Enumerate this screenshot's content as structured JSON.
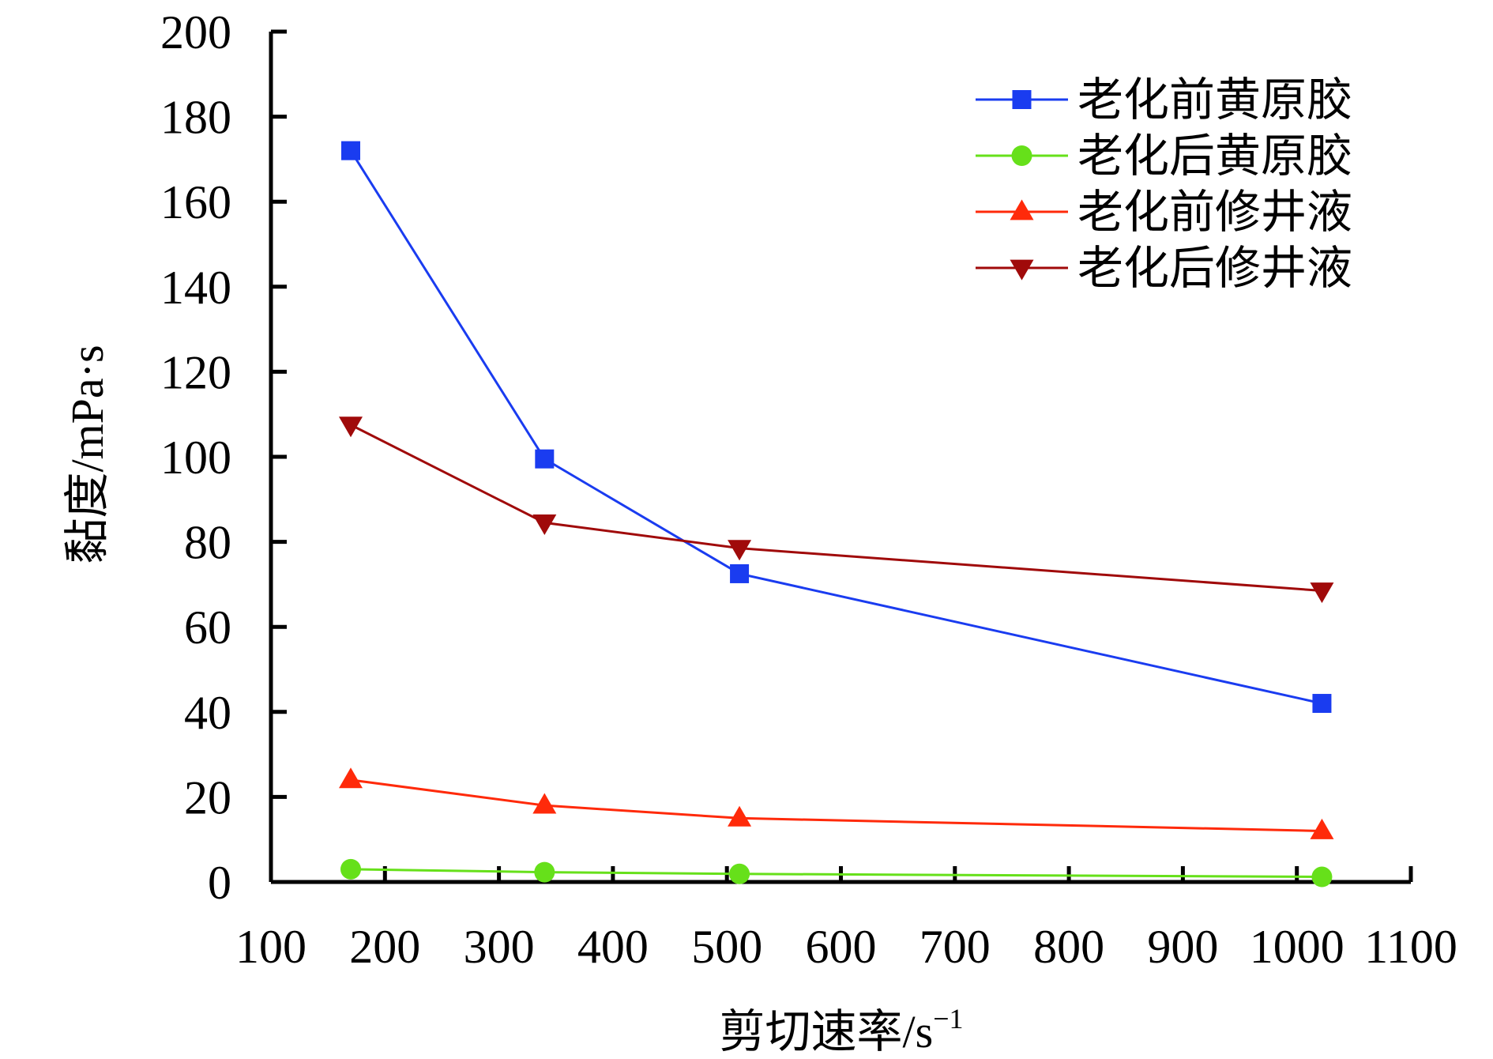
{
  "chart_data": {
    "type": "line",
    "xlabel": "剪切速率/s",
    "xlabel_sup": "−1",
    "ylabel": "黏度/mPa·s",
    "xlim": [
      100,
      1100
    ],
    "ylim": [
      0,
      200
    ],
    "x_ticks": [
      100,
      200,
      300,
      400,
      500,
      600,
      700,
      800,
      900,
      1000,
      1100
    ],
    "y_ticks": [
      0,
      20,
      40,
      60,
      80,
      100,
      120,
      140,
      160,
      180,
      200
    ],
    "grid": false,
    "legend_position": "top-right",
    "series": [
      {
        "name": "老化前黄原胶",
        "color": "#1a3cf0",
        "marker": "square",
        "x": [
          170,
          340,
          511,
          1022
        ],
        "y": [
          172,
          99.5,
          72.5,
          42
        ]
      },
      {
        "name": "老化后黄原胶",
        "color": "#66e01a",
        "marker": "circle",
        "x": [
          170,
          340,
          511,
          1022
        ],
        "y": [
          3,
          2.3,
          1.9,
          1.2
        ]
      },
      {
        "name": "老化前修井液",
        "color": "#ff2a0a",
        "marker": "triangle-up",
        "x": [
          170,
          340,
          511,
          1022
        ],
        "y": [
          24,
          18,
          15,
          12
        ]
      },
      {
        "name": "老化后修井液",
        "color": "#a00a0a",
        "marker": "triangle-down",
        "x": [
          170,
          340,
          511,
          1022
        ],
        "y": [
          107.5,
          84.5,
          78.5,
          68.5
        ]
      }
    ]
  }
}
